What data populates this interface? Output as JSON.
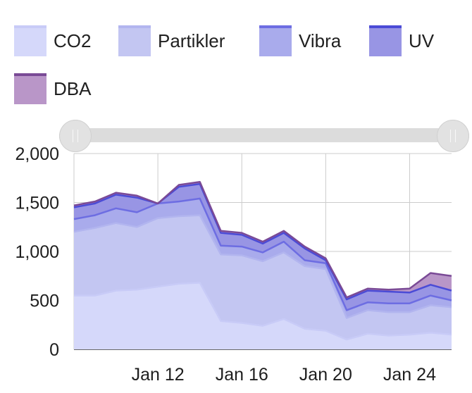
{
  "chart_data": {
    "type": "area",
    "stacked": true,
    "x": [
      "Jan 8",
      "Jan 9",
      "Jan 10",
      "Jan 11",
      "Jan 12",
      "Jan 13",
      "Jan 14",
      "Jan 15",
      "Jan 16",
      "Jan 17",
      "Jan 18",
      "Jan 19",
      "Jan 20",
      "Jan 21",
      "Jan 22",
      "Jan 23",
      "Jan 24",
      "Jan 25",
      "Jan 26"
    ],
    "x_ticks": [
      "Jan 12",
      "Jan 16",
      "Jan 20",
      "Jan 24"
    ],
    "y_ticks": [
      "2,000",
      "1,500",
      "1,000",
      "500",
      "0"
    ],
    "ylim": [
      0,
      2000
    ],
    "grid": true,
    "legend_position": "top",
    "series": [
      {
        "name": "CO2",
        "color": "#d5d8fa",
        "values": [
          550,
          550,
          600,
          610,
          640,
          670,
          680,
          290,
          270,
          240,
          310,
          210,
          190,
          100,
          160,
          140,
          150,
          170,
          150
        ]
      },
      {
        "name": "Partikler",
        "color": "#c3c6f2",
        "values": [
          650,
          690,
          690,
          640,
          700,
          690,
          690,
          680,
          690,
          660,
          680,
          640,
          630,
          220,
          240,
          240,
          230,
          280,
          280
        ]
      },
      {
        "name": "Vibra",
        "color": "#a9abec",
        "values": [
          130,
          130,
          150,
          150,
          150,
          150,
          170,
          90,
          90,
          90,
          110,
          60,
          60,
          80,
          80,
          90,
          90,
          100,
          70
        ]
      },
      {
        "name": "UV",
        "color": "#9895e4",
        "values": [
          120,
          120,
          140,
          150,
          0,
          150,
          150,
          130,
          120,
          90,
          90,
          120,
          30,
          110,
          120,
          120,
          110,
          110,
          100
        ]
      },
      {
        "name": "DBA",
        "color": "#b996c8",
        "values": [
          20,
          20,
          20,
          20,
          0,
          20,
          20,
          20,
          20,
          20,
          20,
          20,
          20,
          20,
          20,
          20,
          40,
          120,
          150
        ]
      }
    ],
    "line_colors": [
      "#c8cbf7",
      "#b2b5ef",
      "#6d6de2",
      "#4b4bd6",
      "#7a4a96"
    ]
  },
  "slider": {
    "min_handle": "start",
    "max_handle": "end"
  }
}
